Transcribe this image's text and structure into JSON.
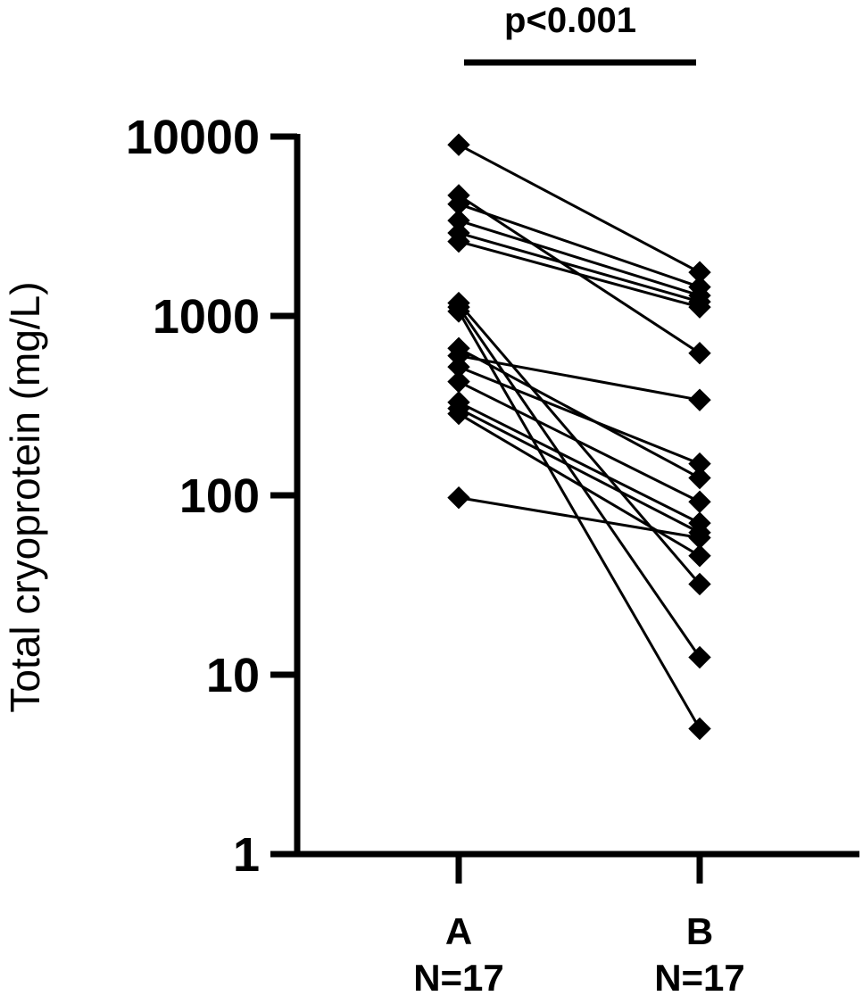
{
  "chart_data": {
    "type": "line",
    "subtype": "paired before-after dot plot",
    "title": "",
    "ylabel": "Total cryoprotein (mg/L)",
    "xlabel": "",
    "yscale": "log",
    "ylim": [
      1,
      10000
    ],
    "yticks": [
      1,
      10,
      100,
      1000,
      10000
    ],
    "ytick_labels": [
      "1",
      "10",
      "100",
      "1000",
      "10000"
    ],
    "categories": [
      "A",
      "B"
    ],
    "category_counts": [
      "N=17",
      "N=17"
    ],
    "annotation": {
      "text": "p<0.001",
      "spans": [
        "A",
        "B"
      ]
    },
    "marker": "diamond",
    "color": "#000000",
    "grid": false,
    "legend": "none",
    "pairs": [
      {
        "A": 9000,
        "B": 1750
      },
      {
        "A": 4700,
        "B": 620
      },
      {
        "A": 4200,
        "B": 1450
      },
      {
        "A": 3400,
        "B": 1300
      },
      {
        "A": 2900,
        "B": 1200
      },
      {
        "A": 2600,
        "B": 1120
      },
      {
        "A": 1180,
        "B": 32
      },
      {
        "A": 1120,
        "B": 12.5
      },
      {
        "A": 1060,
        "B": 5
      },
      {
        "A": 660,
        "B": 125
      },
      {
        "A": 600,
        "B": 340
      },
      {
        "A": 520,
        "B": 150
      },
      {
        "A": 430,
        "B": 92
      },
      {
        "A": 330,
        "B": 70
      },
      {
        "A": 305,
        "B": 62
      },
      {
        "A": 285,
        "B": 46
      },
      {
        "A": 97,
        "B": 58
      }
    ]
  }
}
